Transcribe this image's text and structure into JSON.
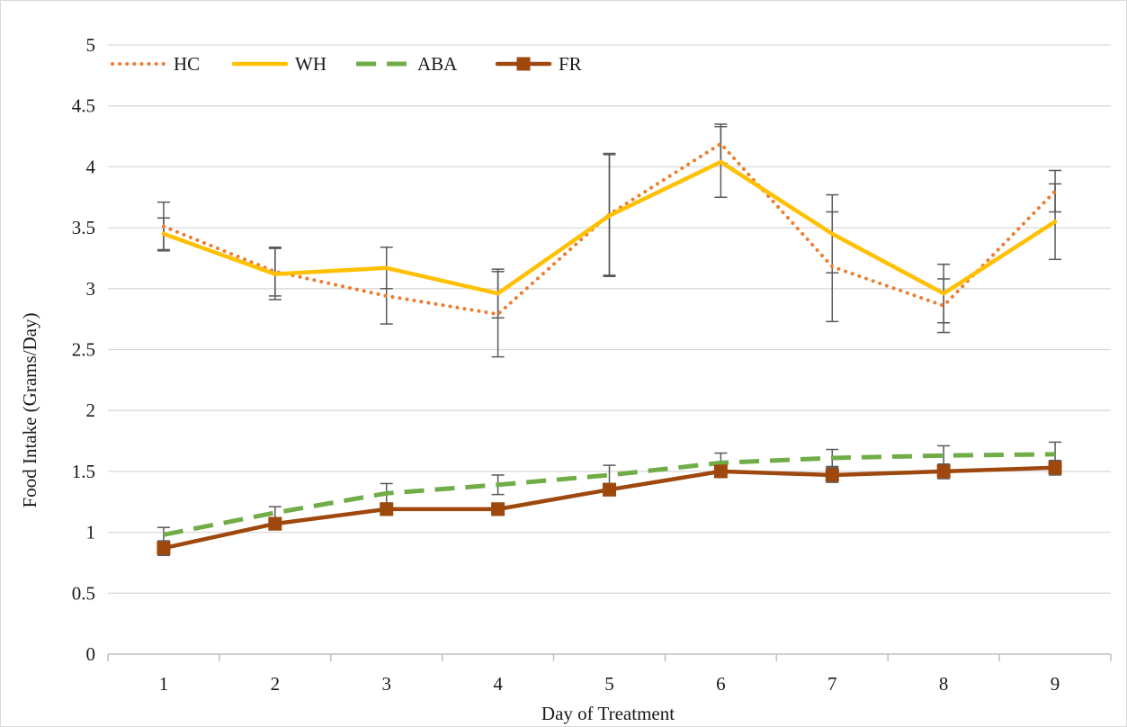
{
  "chart_data": {
    "type": "line",
    "title": "",
    "xlabel": "Day of Treatment",
    "ylabel": "Food Intake (Grams/Day)",
    "categories": [
      "1",
      "2",
      "3",
      "4",
      "5",
      "6",
      "7",
      "8",
      "9"
    ],
    "ylim": [
      0,
      5
    ],
    "yticks": [
      "0",
      "0.5",
      "1",
      "1.5",
      "2",
      "2.5",
      "3",
      "3.5",
      "4",
      "4.5",
      "5"
    ],
    "grid": "horizontal",
    "legend_position": "top-left",
    "series": [
      {
        "name": "HC",
        "style": "dotted",
        "color": "#ed7d31",
        "values": [
          3.51,
          3.14,
          2.94,
          2.79,
          3.61,
          4.19,
          3.18,
          2.86,
          3.8
        ],
        "error": [
          0.2,
          0.2,
          0.23,
          0.35,
          0.5,
          0.16,
          0.45,
          0.22,
          0.17
        ]
      },
      {
        "name": "WH",
        "style": "solid",
        "color": "#ffc000",
        "values": [
          3.45,
          3.12,
          3.17,
          2.96,
          3.6,
          4.04,
          3.45,
          2.96,
          3.55
        ],
        "error": [
          0.13,
          0.21,
          0.17,
          0.2,
          0.5,
          0.29,
          0.32,
          0.24,
          0.31
        ]
      },
      {
        "name": "ABA",
        "style": "dashed",
        "color": "#70ad47",
        "values": [
          0.98,
          1.16,
          1.32,
          1.39,
          1.47,
          1.57,
          1.61,
          1.63,
          1.64
        ],
        "error": [
          0.06,
          0.05,
          0.08,
          0.08,
          0.08,
          0.08,
          0.07,
          0.08,
          0.1
        ]
      },
      {
        "name": "FR",
        "style": "solid-square-markers",
        "color": "#9e480e",
        "values": [
          0.87,
          1.07,
          1.19,
          1.19,
          1.35,
          1.5,
          1.47,
          1.5,
          1.53
        ],
        "error": [
          0.06,
          0.05,
          0.05,
          0.05,
          0.05,
          0.05,
          0.06,
          0.06,
          0.06
        ]
      }
    ],
    "errorbar_color": "#595959"
  }
}
